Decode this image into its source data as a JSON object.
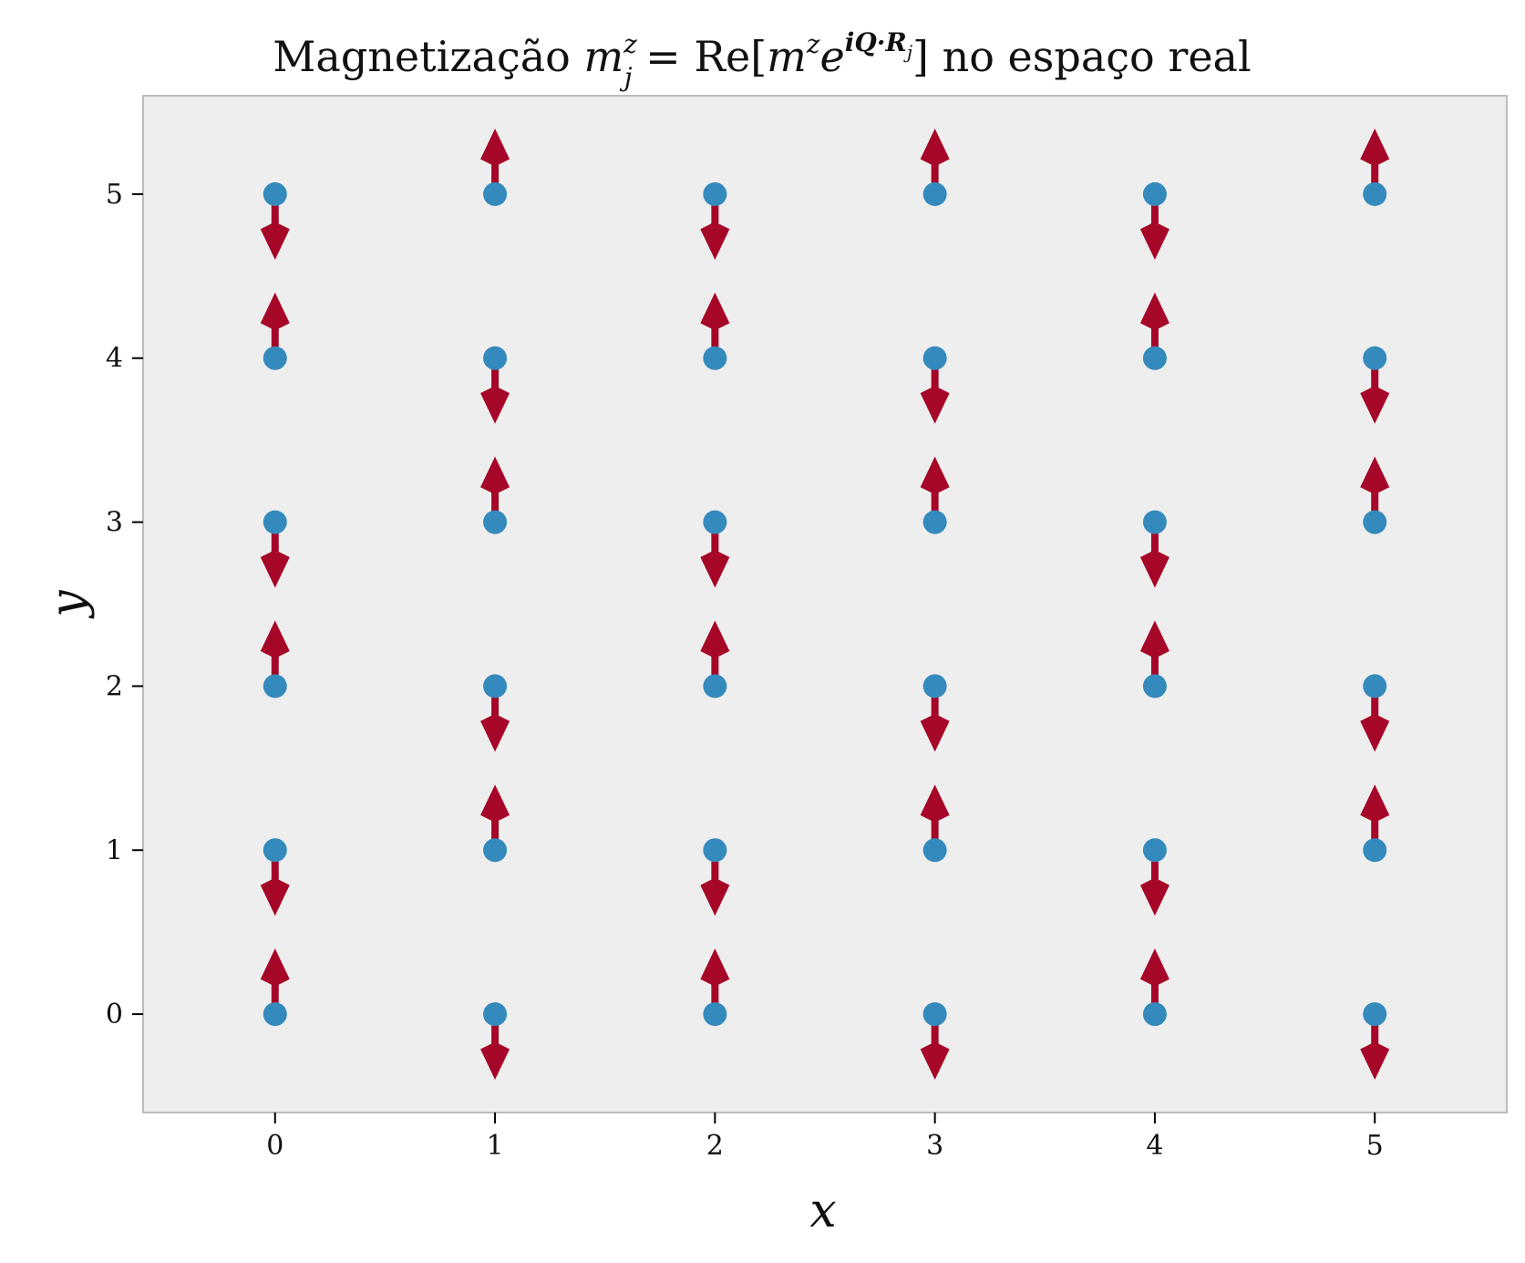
{
  "chart_data": {
    "type": "scatter",
    "title": {
      "prefix": "Magnetização ",
      "m": "m",
      "sub_j": "j",
      "sup_z": "z",
      "eq": " = Re[",
      "m2": "m",
      "sup_z2": "z",
      "e": "e",
      "exp": "iQ·R",
      "exp_sub": "j",
      "close": "]",
      "suffix": " no espaço real"
    },
    "xlabel": "x",
    "ylabel": "y",
    "xlim": [
      -0.6,
      5.6
    ],
    "ylim": [
      -0.6,
      5.6
    ],
    "xticks": [
      0,
      1,
      2,
      3,
      4,
      5
    ],
    "yticks": [
      0,
      1,
      2,
      3,
      4,
      5
    ],
    "grid": false,
    "ordering_vector_Q": [
      "pi",
      "pi"
    ],
    "sites": {
      "x": [
        0,
        1,
        2,
        3,
        4,
        5
      ],
      "y": [
        0,
        1,
        2,
        3,
        4,
        5
      ],
      "color": "#348abd"
    },
    "spins": {
      "description_rule": "m_j^z = cos(pi*(x+y))",
      "color": "#a60628",
      "values": [
        [
          1,
          -1,
          1,
          -1,
          1,
          -1
        ],
        [
          -1,
          1,
          -1,
          1,
          -1,
          1
        ],
        [
          1,
          -1,
          1,
          -1,
          1,
          -1
        ],
        [
          -1,
          1,
          -1,
          1,
          -1,
          1
        ],
        [
          1,
          -1,
          1,
          -1,
          1,
          -1
        ],
        [
          -1,
          1,
          -1,
          1,
          -1,
          1
        ]
      ]
    },
    "colors": {
      "axes_background": "#eeeeee",
      "spine": "#bcbcbc",
      "site": "#348abd",
      "arrow": "#a60628"
    }
  }
}
